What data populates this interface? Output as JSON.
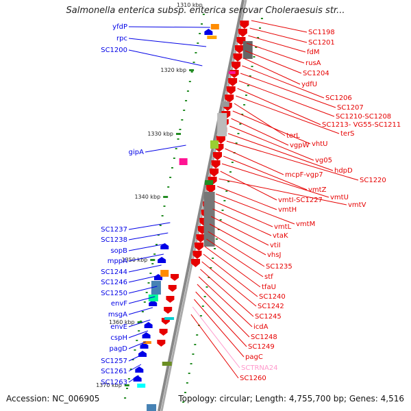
{
  "header": {
    "title": "Salmonella enterica subsp. enterica serovar Choleraesuis str...",
    "title_overlay_tick": "1310 kbp"
  },
  "footer": {
    "accession": "Accession: NC_006905",
    "topology": "Topology: circular; Length: 4,755,700 bp; Genes: 4,516"
  },
  "colors": {
    "forward_gene": "#e60000",
    "reverse_gene": "#0000e6",
    "trna": "#ff99cc",
    "backbone": "#888888",
    "tick": "#228b22"
  },
  "ticks": [
    "1320 kbp",
    "1330 kbp",
    "1340 kbp",
    "1350 kbp",
    "1360 kbp",
    "1370 kbp"
  ],
  "labels_left": [
    "yfdP",
    "rpc",
    "SC1200",
    "gipA",
    "SC1237",
    "SC1238",
    "sopB",
    "mppA",
    "SC1244",
    "SC1246",
    "SC1250",
    "envF",
    "msgA",
    "envE",
    "cspH",
    "pagD",
    "SC1257",
    "SC1261",
    "SC1263"
  ],
  "labels_right": [
    "SC1198",
    "SC1201",
    "fdM",
    "rusA",
    "SC1204",
    "ydfU",
    "SC1206",
    "SC1207",
    "SC1210-SC1208",
    "SC1213- VG55-SC1211",
    "terS",
    "terL",
    "vhtU",
    "vgpW",
    "vg05",
    "hdpD",
    "SC1220",
    "mcpF-vgp7",
    "vmtZ",
    "vmtU",
    "vmtI-SC1227",
    "vmtV",
    "vmtH",
    "vmtM",
    "vmtL",
    "vtaK",
    "vtiI",
    "vhsJ",
    "SC1235",
    "stf",
    "tfaU",
    "SC1240",
    "SC1242",
    "SC1245",
    "icdA",
    "SC1248",
    "SC1249",
    "pagC",
    "SCTRNA24",
    "SC1260"
  ]
}
